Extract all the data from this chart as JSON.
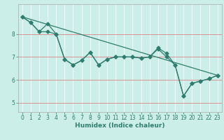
{
  "xlabel": "Humidex (Indice chaleur)",
  "bg_color": "#cceee8",
  "grid_color_white": "#ffffff",
  "grid_color_red": "#cc6666",
  "line_color": "#2e7d6e",
  "xlim": [
    -0.5,
    23.5
  ],
  "ylim": [
    4.6,
    9.3
  ],
  "yticks": [
    5,
    6,
    7,
    8
  ],
  "xticks": [
    0,
    1,
    2,
    3,
    4,
    5,
    6,
    7,
    8,
    9,
    10,
    11,
    12,
    13,
    14,
    15,
    16,
    17,
    18,
    19,
    20,
    21,
    22,
    23
  ],
  "line1_x": [
    0,
    1,
    2,
    3,
    4,
    5,
    6,
    7,
    8,
    9,
    10,
    11,
    12,
    13,
    14,
    15,
    16,
    17,
    18,
    19,
    20,
    21,
    22,
    23
  ],
  "line1_y": [
    8.75,
    8.5,
    8.1,
    8.45,
    8.0,
    6.9,
    6.65,
    6.85,
    7.2,
    6.65,
    6.9,
    7.0,
    7.0,
    7.0,
    6.95,
    7.0,
    7.4,
    7.15,
    6.65,
    5.3,
    5.85,
    5.95,
    6.05,
    6.2
  ],
  "line2_x": [
    0,
    1,
    2,
    3,
    4,
    5,
    6,
    7,
    8,
    9,
    10,
    11,
    12,
    13,
    14,
    15,
    16,
    17,
    18,
    19,
    20,
    21,
    22,
    23
  ],
  "line2_y": [
    8.75,
    8.5,
    8.1,
    8.1,
    8.0,
    6.9,
    6.65,
    6.85,
    7.2,
    6.65,
    6.9,
    7.0,
    7.0,
    7.0,
    6.95,
    7.0,
    7.35,
    7.0,
    6.65,
    5.3,
    5.85,
    5.95,
    6.05,
    6.2
  ],
  "line3_x": [
    0,
    23
  ],
  "line3_y": [
    8.75,
    6.2
  ],
  "marker_size": 2.5,
  "line_width": 0.9,
  "tick_fontsize": 5.5,
  "xlabel_fontsize": 6.5
}
